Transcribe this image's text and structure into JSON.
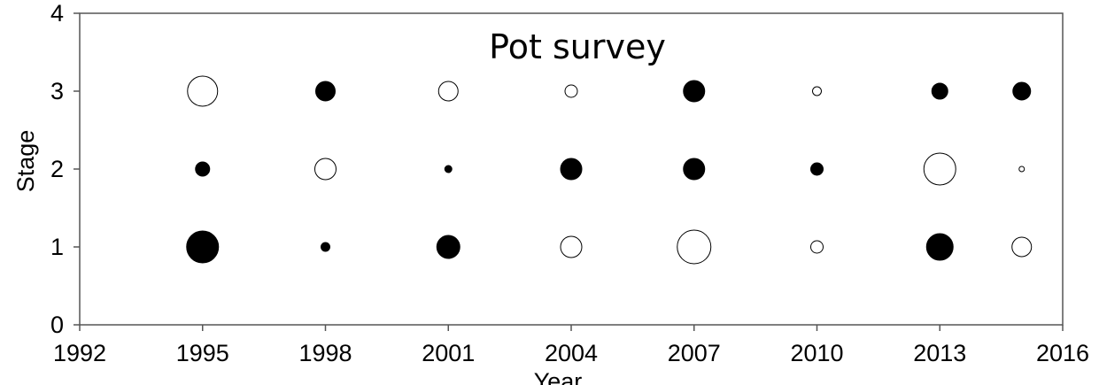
{
  "chart_data": {
    "type": "scatter",
    "title": "Pot survey",
    "xlabel": "Year",
    "ylabel": "Stage",
    "xlim": [
      1992,
      2016
    ],
    "ylim": [
      0,
      4
    ],
    "xticks": [
      "1992",
      "1995",
      "1998",
      "2001",
      "2004",
      "2007",
      "2010",
      "2013",
      "2016"
    ],
    "yticks": [
      "0",
      "1",
      "2",
      "3",
      "4"
    ],
    "grid": false,
    "legend": "none",
    "points": [
      {
        "x": 1995,
        "y": 3,
        "size": 17,
        "filled": false
      },
      {
        "x": 1995,
        "y": 2,
        "size": 8,
        "filled": true
      },
      {
        "x": 1995,
        "y": 1,
        "size": 18,
        "filled": true
      },
      {
        "x": 1998,
        "y": 3,
        "size": 11,
        "filled": true
      },
      {
        "x": 1998,
        "y": 2,
        "size": 12,
        "filled": false
      },
      {
        "x": 1998,
        "y": 1,
        "size": 5,
        "filled": true
      },
      {
        "x": 2001,
        "y": 3,
        "size": 11,
        "filled": false
      },
      {
        "x": 2001,
        "y": 2,
        "size": 4,
        "filled": true
      },
      {
        "x": 2001,
        "y": 1,
        "size": 13,
        "filled": true
      },
      {
        "x": 2004,
        "y": 3,
        "size": 7,
        "filled": false
      },
      {
        "x": 2004,
        "y": 2,
        "size": 12,
        "filled": true
      },
      {
        "x": 2004,
        "y": 1,
        "size": 12,
        "filled": false
      },
      {
        "x": 2007,
        "y": 3,
        "size": 12,
        "filled": true
      },
      {
        "x": 2007,
        "y": 2,
        "size": 12,
        "filled": true
      },
      {
        "x": 2007,
        "y": 1,
        "size": 19,
        "filled": false
      },
      {
        "x": 2010,
        "y": 3,
        "size": 5,
        "filled": false
      },
      {
        "x": 2010,
        "y": 2,
        "size": 7,
        "filled": true
      },
      {
        "x": 2010,
        "y": 1,
        "size": 7,
        "filled": false
      },
      {
        "x": 2013,
        "y": 3,
        "size": 9,
        "filled": true
      },
      {
        "x": 2013,
        "y": 2,
        "size": 18,
        "filled": false
      },
      {
        "x": 2013,
        "y": 1,
        "size": 15,
        "filled": true
      },
      {
        "x": 2015,
        "y": 3,
        "size": 10,
        "filled": true
      },
      {
        "x": 2015,
        "y": 2,
        "size": 3,
        "filled": false
      },
      {
        "x": 2015,
        "y": 1,
        "size": 11,
        "filled": false
      }
    ]
  }
}
